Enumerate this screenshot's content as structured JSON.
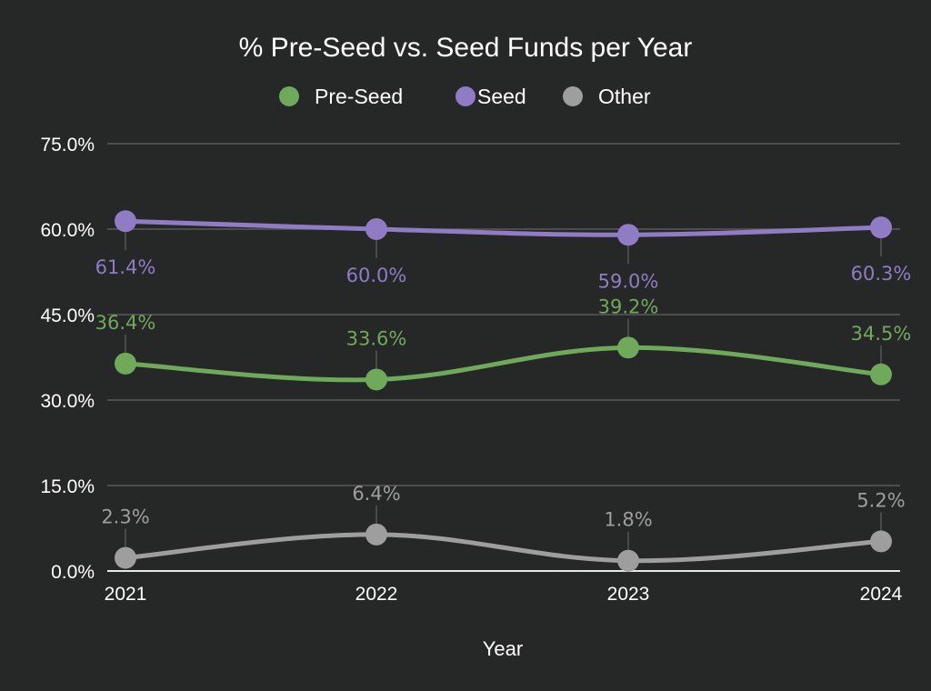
{
  "chart_data": {
    "type": "line",
    "title": "% Pre-Seed vs. Seed Funds per Year",
    "xlabel": "Year",
    "ylabel": "",
    "categories": [
      "2021",
      "2022",
      "2023",
      "2024"
    ],
    "ylim": [
      0,
      75
    ],
    "yticks": [
      0,
      15,
      30,
      45,
      60,
      75
    ],
    "ytick_labels": [
      "0.0%",
      "15.0%",
      "30.0%",
      "45.0%",
      "60.0%",
      "75.0%"
    ],
    "grid": true,
    "legend_position": "top-center",
    "smooth": true,
    "series": [
      {
        "name": "Pre-Seed",
        "color": "#6fa95a",
        "values": [
          36.4,
          33.6,
          39.2,
          34.5
        ],
        "labels": [
          "36.4%",
          "33.6%",
          "39.2%",
          "34.5%"
        ],
        "label_position": "above"
      },
      {
        "name": "Seed",
        "color": "#8f7cc4",
        "values": [
          61.4,
          60.0,
          59.0,
          60.3
        ],
        "labels": [
          "61.4%",
          "60.0%",
          "59.0%",
          "60.3%"
        ],
        "label_position": "below"
      },
      {
        "name": "Other",
        "color": "#9e9e9e",
        "values": [
          2.3,
          6.4,
          1.8,
          5.2
        ],
        "labels": [
          "2.3%",
          "6.4%",
          "1.8%",
          "5.2%"
        ],
        "label_position": "above"
      }
    ]
  }
}
